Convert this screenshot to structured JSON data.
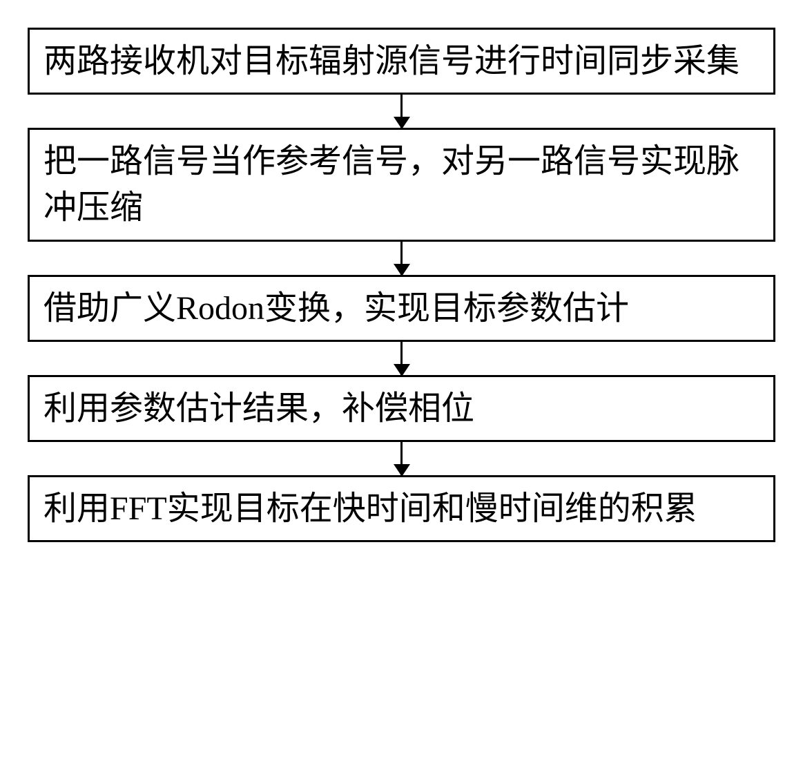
{
  "flowchart": {
    "type": "flowchart",
    "direction": "vertical",
    "box_border_color": "#000000",
    "box_border_width": 3,
    "box_background": "#ffffff",
    "text_color": "#000000",
    "text_fontsize": 48,
    "font_family": "SimSun",
    "arrow_color": "#000000",
    "arrow_width": 3,
    "arrow_head_size": 18,
    "steps": [
      {
        "id": "step1",
        "text": "两路接收机对目标辐射源信号进行时间同步采集"
      },
      {
        "id": "step2",
        "text": "把一路信号当作参考信号，对另一路信号实现脉冲压缩"
      },
      {
        "id": "step3",
        "text": "借助广义Rodon变换，实现目标参数估计"
      },
      {
        "id": "step4",
        "text": "利用参数估计结果，补偿相位"
      },
      {
        "id": "step5",
        "text": "利用FFT实现目标在快时间和慢时间维的积累"
      }
    ]
  }
}
